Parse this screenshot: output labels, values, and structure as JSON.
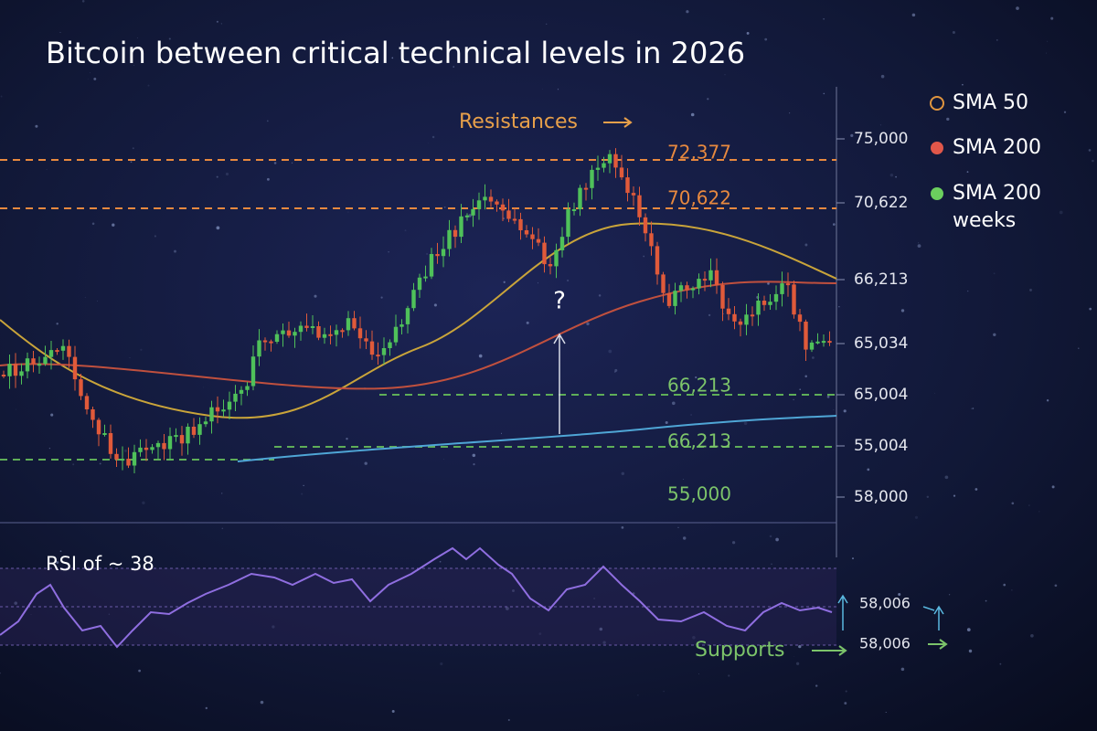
{
  "header": {
    "title": "Bitcoin between critical technical levels in 2026"
  },
  "legend": [
    {
      "label": "SMA 50"
    },
    {
      "label": "SMA 200"
    },
    {
      "label": "SMA 200 weeks"
    }
  ],
  "axis_labels": [
    "75,000",
    "70,622",
    "66,213",
    "65,034",
    "65,004",
    "55,004",
    "58,000"
  ],
  "level_labels": [
    "72,377",
    "70,622",
    "66,213",
    "66,213",
    "55,000"
  ],
  "annotations": {
    "resistances": "Resistances",
    "question": "?",
    "supports": "Supports"
  },
  "rsi": {
    "label": "RSI of ~ 38",
    "levels": [
      "58,006",
      "58,006"
    ]
  }
}
